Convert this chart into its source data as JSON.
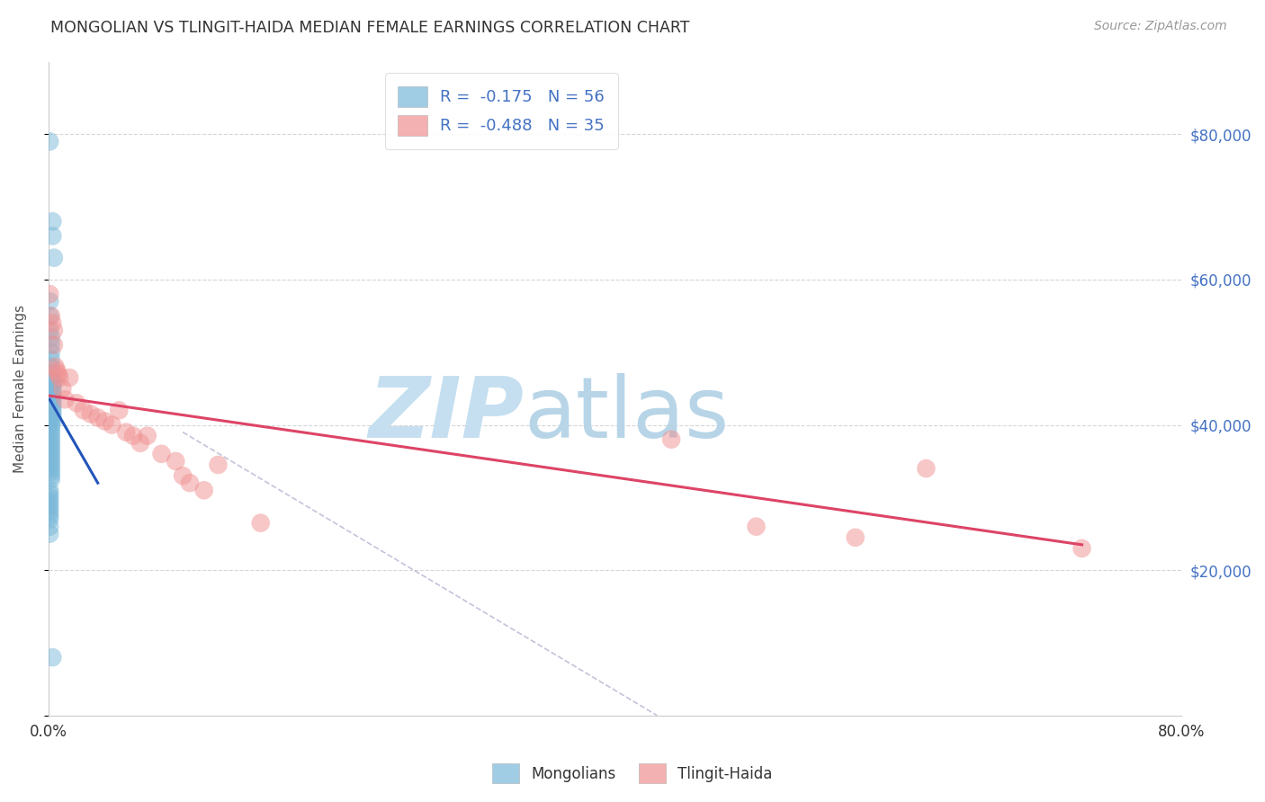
{
  "title": "MONGOLIAN VS TLINGIT-HAIDA MEDIAN FEMALE EARNINGS CORRELATION CHART",
  "source_text": "Source: ZipAtlas.com",
  "ylabel": "Median Female Earnings",
  "xlim": [
    0.0,
    0.8
  ],
  "ylim": [
    0,
    90000
  ],
  "yticks": [
    0,
    20000,
    40000,
    60000,
    80000
  ],
  "ytick_labels": [
    "",
    "$20,000",
    "$40,000",
    "$60,000",
    "$80,000"
  ],
  "xticks": [
    0.0,
    0.1,
    0.2,
    0.3,
    0.4,
    0.5,
    0.6,
    0.7,
    0.8
  ],
  "xtick_labels": [
    "0.0%",
    "",
    "",
    "",
    "",
    "",
    "",
    "",
    "80.0%"
  ],
  "mongolian_x": [
    0.001,
    0.003,
    0.003,
    0.004,
    0.001,
    0.001,
    0.001,
    0.002,
    0.002,
    0.002,
    0.002,
    0.002,
    0.002,
    0.002,
    0.003,
    0.003,
    0.003,
    0.003,
    0.003,
    0.003,
    0.003,
    0.003,
    0.003,
    0.003,
    0.003,
    0.004,
    0.001,
    0.001,
    0.002,
    0.002,
    0.002,
    0.002,
    0.002,
    0.002,
    0.002,
    0.002,
    0.002,
    0.002,
    0.002,
    0.002,
    0.002,
    0.002,
    0.002,
    0.002,
    0.001,
    0.001,
    0.001,
    0.001,
    0.001,
    0.001,
    0.001,
    0.001,
    0.001,
    0.001,
    0.001,
    0.003
  ],
  "mongolian_y": [
    79000,
    68000,
    66000,
    63000,
    57000,
    55000,
    53000,
    52000,
    51000,
    50000,
    49000,
    48000,
    47000,
    46000,
    45500,
    45000,
    44500,
    44000,
    43500,
    43000,
    42500,
    42000,
    41500,
    41000,
    40500,
    46000,
    41000,
    40500,
    40000,
    39500,
    39000,
    38500,
    38000,
    37500,
    37000,
    36500,
    36000,
    35500,
    35000,
    34500,
    34000,
    33500,
    33000,
    32500,
    31000,
    30500,
    30000,
    29500,
    29000,
    28500,
    28000,
    27500,
    27000,
    26000,
    25000,
    8000
  ],
  "tlingit_x": [
    0.001,
    0.002,
    0.003,
    0.004,
    0.004,
    0.005,
    0.006,
    0.007,
    0.008,
    0.01,
    0.012,
    0.015,
    0.02,
    0.025,
    0.03,
    0.035,
    0.04,
    0.045,
    0.05,
    0.055,
    0.06,
    0.065,
    0.07,
    0.08,
    0.09,
    0.095,
    0.1,
    0.11,
    0.12,
    0.15,
    0.44,
    0.5,
    0.57,
    0.62,
    0.73
  ],
  "tlingit_y": [
    58000,
    55000,
    54000,
    53000,
    51000,
    48000,
    47500,
    47000,
    46500,
    45000,
    43500,
    46500,
    43000,
    42000,
    41500,
    41000,
    40500,
    40000,
    42000,
    39000,
    38500,
    37500,
    38500,
    36000,
    35000,
    33000,
    32000,
    31000,
    34500,
    26500,
    38000,
    26000,
    24500,
    34000,
    23000
  ],
  "blue_color": "#7ab8d9",
  "pink_color": "#f09090",
  "blue_line_color": "#2255bb",
  "pink_line_color": "#dd4466",
  "blue_line_x": [
    0.001,
    0.035
  ],
  "blue_line_y": [
    43500,
    32000
  ],
  "pink_line_x": [
    0.001,
    0.73
  ],
  "pink_line_y": [
    44000,
    23500
  ],
  "ref_line_x": [
    0.095,
    0.43
  ],
  "ref_line_y": [
    39000,
    0
  ],
  "watermark_zip": "ZIP",
  "watermark_atlas": "atlas",
  "watermark_color_zip": "#c5dff0",
  "watermark_color_atlas": "#b8d5e8",
  "background_color": "#ffffff",
  "grid_color": "#cccccc",
  "title_color": "#333333",
  "right_ytick_color": "#4472c4",
  "r_value_mongolian": -0.175,
  "n_mongolian": 56,
  "r_value_tlingit": -0.488,
  "n_tlingit": 35
}
